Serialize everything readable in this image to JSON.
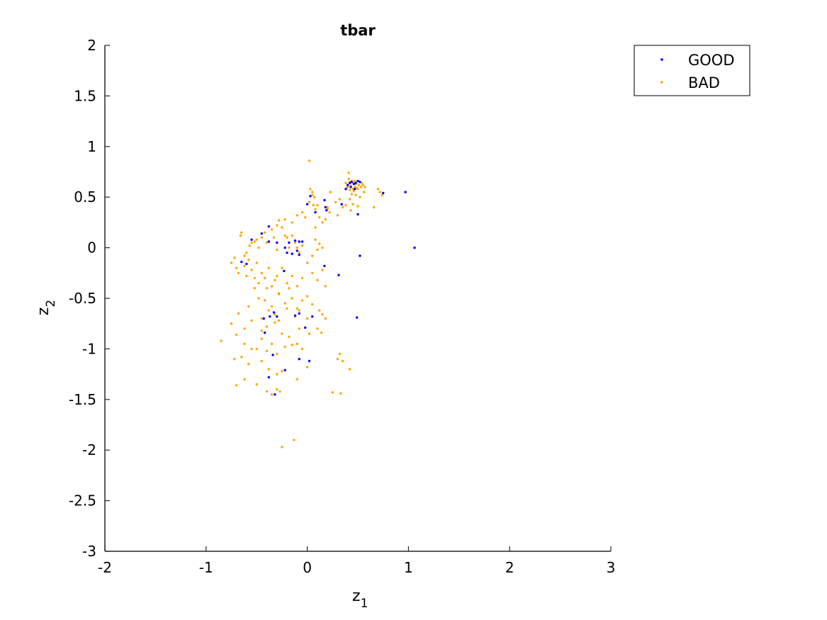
{
  "chart_data": {
    "type": "scatter",
    "title": "tbar",
    "xlabel": "z",
    "xlabel_sub": "1",
    "ylabel": "z",
    "ylabel_sub": "2",
    "xlim": [
      -2,
      3
    ],
    "ylim": [
      -3,
      2
    ],
    "xticks": [
      -2,
      -1,
      0,
      1,
      2,
      3
    ],
    "xtick_labels": [
      "-2",
      "-1",
      "0",
      "1",
      "2",
      "3"
    ],
    "yticks": [
      -3,
      -2.5,
      -2,
      -1.5,
      -1,
      -0.5,
      0,
      0.5,
      1,
      1.5,
      2
    ],
    "ytick_labels": [
      "-3",
      "-2.5",
      "-2",
      "-1.5",
      "-1",
      "-0.5",
      "0",
      "0.5",
      "1",
      "1.5",
      "2"
    ],
    "grid": false,
    "legend_position": "top-right",
    "series": [
      {
        "name": "BAD",
        "color": "#FFA500",
        "x": [
          0.02,
          0.41,
          0.23,
          0.41,
          0.38,
          0.42,
          0.44,
          0.46,
          0.48,
          0.5,
          0.52,
          0.54,
          0.55,
          0.4,
          0.43,
          0.47,
          0.51,
          0.45,
          0.49,
          0.53,
          0.42,
          0.46,
          0.5,
          0.44,
          0.48,
          0.52,
          0.56,
          0.39,
          0.57,
          0.47,
          0.7,
          0.72,
          0.74,
          0.66,
          0.03,
          0.05,
          0.07,
          0.02,
          0.06,
          0.08,
          0.05,
          0.1,
          0.2,
          0.22,
          0.3,
          0.28,
          0.32,
          0.35,
          0.38,
          0.42,
          0.45,
          0.5,
          0.4,
          0.43,
          0.12,
          0.15,
          -0.05,
          -0.1,
          0.2,
          0.18,
          0.08,
          -0.02,
          -0.22,
          -0.15,
          -0.28,
          -0.3,
          -0.25,
          -0.35,
          -0.42,
          -0.45,
          -0.5,
          -0.65,
          -0.66,
          -0.55,
          -0.57,
          -0.6,
          -0.62,
          -0.58,
          -0.52,
          -0.48,
          -0.4,
          -0.33,
          -0.3,
          -0.2,
          -0.15,
          -0.12,
          -0.1,
          -0.05,
          -0.08,
          -0.18,
          -0.22,
          0.05,
          0.1,
          0.08,
          0.12,
          0.15,
          -0.72,
          -0.75,
          -0.7,
          -0.68,
          -0.62,
          -0.6,
          -0.55,
          -0.52,
          -0.5,
          -0.48,
          -0.45,
          -0.42,
          -0.4,
          -0.38,
          -0.35,
          -0.32,
          -0.3,
          -0.28,
          -0.25,
          -0.2,
          -0.18,
          -0.15,
          -0.1,
          -0.05,
          0.0,
          0.05,
          0.1,
          0.15,
          0.18,
          -0.52,
          -0.48,
          -0.42,
          -0.35,
          -0.28,
          -0.22,
          -0.15,
          -0.1,
          -0.05,
          0.0,
          0.05,
          -0.68,
          -0.58,
          -0.45,
          -0.38,
          -0.32,
          -0.28,
          -0.2,
          -0.12,
          -0.08,
          0.0,
          0.12,
          0.15,
          0.18,
          -0.75,
          -0.62,
          -0.55,
          -0.45,
          -0.4,
          -0.32,
          -0.25,
          -0.18,
          -0.08,
          0.02,
          0.1,
          0.14,
          -0.85,
          -0.7,
          -0.62,
          -0.55,
          -0.5,
          -0.45,
          -0.4,
          -0.35,
          -0.3,
          -0.22,
          -0.15,
          -0.1,
          -0.05,
          0.3,
          0.32,
          0.35,
          -0.72,
          -0.65,
          -0.58,
          -0.45,
          -0.38,
          -0.3,
          -0.25,
          -0.1,
          0.0,
          0.42,
          -0.7,
          -0.62,
          -0.5,
          -0.4,
          -0.3,
          0.25,
          0.33,
          -0.35,
          -0.27,
          -0.13,
          -0.25
        ],
        "y": [
          0.86,
          0.74,
          0.55,
          0.68,
          0.64,
          0.65,
          0.66,
          0.64,
          0.63,
          0.66,
          0.65,
          0.64,
          0.62,
          0.62,
          0.61,
          0.6,
          0.62,
          0.58,
          0.59,
          0.6,
          0.57,
          0.56,
          0.58,
          0.53,
          0.52,
          0.5,
          0.55,
          0.59,
          0.6,
          0.66,
          0.58,
          0.55,
          0.52,
          0.4,
          0.58,
          0.55,
          0.5,
          0.45,
          0.42,
          0.38,
          0.52,
          0.42,
          0.38,
          0.35,
          0.32,
          0.45,
          0.48,
          0.4,
          0.42,
          0.48,
          0.43,
          0.41,
          0.6,
          0.37,
          0.3,
          0.25,
          0.35,
          0.32,
          0.4,
          0.28,
          0.2,
          0.3,
          0.28,
          0.25,
          0.27,
          0.22,
          0.2,
          0.18,
          0.15,
          0.1,
          0.08,
          0.15,
          0.12,
          0.05,
          0.02,
          -0.05,
          -0.08,
          -0.12,
          0.06,
          0.0,
          0.05,
          0.1,
          -0.02,
          0.1,
          0.12,
          0.05,
          0.0,
          0.02,
          -0.05,
          0.0,
          0.12,
          -0.08,
          -0.02,
          0.08,
          0.04,
          0.0,
          -0.1,
          -0.15,
          -0.2,
          -0.25,
          -0.18,
          -0.28,
          -0.22,
          -0.3,
          -0.15,
          -0.35,
          -0.25,
          -0.3,
          -0.4,
          -0.2,
          -0.38,
          -0.32,
          -0.28,
          -0.45,
          -0.2,
          -0.35,
          -0.4,
          -0.28,
          -0.38,
          -0.3,
          -0.15,
          -0.25,
          -0.32,
          -0.22,
          -0.38,
          -0.4,
          -0.5,
          -0.52,
          -0.58,
          -0.46,
          -0.55,
          -0.5,
          -0.6,
          -0.52,
          -0.48,
          -0.56,
          -0.65,
          -0.58,
          -0.7,
          -0.62,
          -0.66,
          -0.72,
          -0.6,
          -0.68,
          -0.62,
          -0.7,
          -0.62,
          -0.66,
          -0.7,
          -0.75,
          -0.8,
          -0.72,
          -0.82,
          -0.78,
          -0.74,
          -0.85,
          -0.88,
          -0.8,
          -0.85,
          -0.8,
          -0.84,
          -0.92,
          -0.86,
          -0.95,
          -1.0,
          -1.0,
          -0.9,
          -1.02,
          -0.95,
          -1.05,
          -0.98,
          -0.96,
          -0.95,
          -1.0,
          -1.1,
          -1.05,
          -1.12,
          -1.1,
          -1.08,
          -1.15,
          -1.12,
          -1.2,
          -1.25,
          -1.22,
          -1.3,
          -1.18,
          -1.2,
          -1.36,
          -1.3,
          -1.35,
          -1.42,
          -1.4,
          -1.43,
          -1.44,
          -1.45,
          -1.42,
          -1.9,
          -1.97
        ]
      },
      {
        "name": "GOOD",
        "color": "#0000FF",
        "x": [
          0.97,
          1.06,
          0.75,
          0.4,
          0.42,
          0.44,
          0.46,
          0.48,
          0.5,
          0.52,
          0.43,
          0.47,
          0.38,
          0.34,
          0.5,
          0.52,
          0.03,
          0.0,
          0.17,
          0.18,
          0.19,
          0.08,
          -0.38,
          -0.45,
          -0.55,
          -0.38,
          -0.3,
          -0.22,
          -0.18,
          -0.12,
          -0.08,
          -0.05,
          -0.1,
          -0.2,
          -0.08,
          -0.15,
          -0.6,
          -0.65,
          0.17,
          0.31,
          -0.23,
          -0.37,
          -0.43,
          -0.33,
          -0.3,
          -0.12,
          -0.08,
          -0.02,
          0.05,
          0.49,
          -0.42,
          -0.34,
          -0.08,
          0.02,
          -0.22,
          -0.38,
          -0.32
        ],
        "y": [
          0.55,
          0.0,
          0.54,
          0.62,
          0.64,
          0.65,
          0.63,
          0.64,
          0.66,
          0.65,
          0.6,
          0.58,
          0.58,
          0.43,
          0.33,
          -0.08,
          0.51,
          0.43,
          0.47,
          0.4,
          0.37,
          0.35,
          0.21,
          0.14,
          0.08,
          0.06,
          0.05,
          0.0,
          0.05,
          0.07,
          0.06,
          0.06,
          -0.03,
          -0.05,
          -0.07,
          -0.06,
          -0.16,
          -0.14,
          -0.18,
          -0.27,
          -0.23,
          -0.68,
          -0.7,
          -0.64,
          -0.68,
          -0.67,
          -0.65,
          -0.79,
          -0.68,
          -0.69,
          -0.84,
          -1.06,
          -1.1,
          -1.12,
          -1.21,
          -1.28,
          -1.45
        ]
      }
    ],
    "legend": [
      "GOOD",
      "BAD"
    ]
  }
}
